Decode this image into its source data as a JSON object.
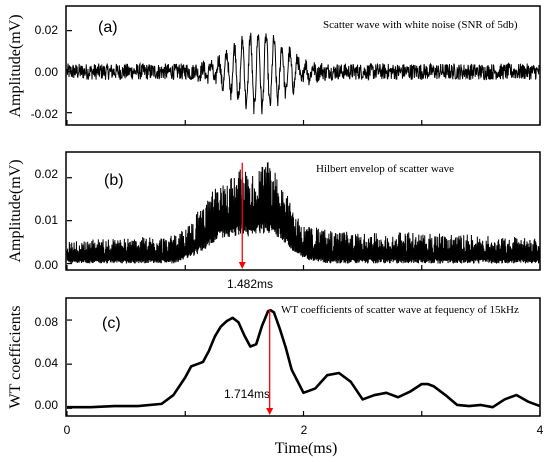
{
  "chart_data": [
    {
      "type": "line",
      "panel_label": "(a)",
      "annotation": "Scatter wave with white noise (SNR of 5db)",
      "ylabel": "Amplitude(mV)",
      "xlim": [
        0,
        4
      ],
      "ylim": [
        -0.026,
        0.032
      ],
      "yticks": [
        -0.02,
        0.0,
        0.02
      ],
      "ytick_labels": [
        "-0.02",
        "0.00",
        "0.02"
      ],
      "x_tick_values": [
        0,
        1,
        2,
        3,
        4
      ],
      "series": [
        {
          "color": "#000000",
          "noise_amplitude": 0.004,
          "burst": {
            "center_ms": 1.62,
            "width_ms": 0.32,
            "peak_amplitude": 0.018,
            "frequency_khz": 15
          },
          "x": [
            0,
            0.5,
            0.9,
            1.1,
            1.3,
            1.5,
            1.62,
            1.8,
            2.0,
            2.2,
            2.5,
            3.0,
            3.5,
            4.0
          ],
          "y_envelope": [
            0.004,
            0.004,
            0.005,
            0.008,
            0.014,
            0.019,
            0.02,
            0.017,
            0.01,
            0.006,
            0.004,
            0.004,
            0.004,
            0.004
          ]
        }
      ]
    },
    {
      "type": "line",
      "panel_label": "(b)",
      "annotation": "Hilbert envelop of scatter wave",
      "ylabel": "Amplitude(mV)",
      "xlim": [
        0,
        4
      ],
      "ylim": [
        -0.0015,
        0.026
      ],
      "yticks": [
        0.0,
        0.01,
        0.02
      ],
      "ytick_labels": [
        "0.00",
        "0.01",
        "0.02"
      ],
      "x_tick_values": [
        0,
        1,
        2,
        3,
        4
      ],
      "marker": {
        "x": 1.482,
        "y": 0.0235,
        "label": "1.482ms",
        "color": "#ff0000"
      },
      "series": [
        {
          "color": "#000000",
          "x": [
            0,
            0.5,
            0.9,
            1.0,
            1.1,
            1.2,
            1.3,
            1.4,
            1.482,
            1.55,
            1.6,
            1.7,
            1.8,
            1.9,
            2.0,
            2.2,
            2.5,
            3.0,
            3.5,
            4.0
          ],
          "y_upper": [
            0.0055,
            0.006,
            0.0065,
            0.008,
            0.012,
            0.016,
            0.019,
            0.021,
            0.023,
            0.02,
            0.022,
            0.024,
            0.021,
            0.013,
            0.009,
            0.008,
            0.007,
            0.0075,
            0.0065,
            0.006
          ],
          "y_lower": [
            0.0,
            0.0,
            0.0,
            0.001,
            0.002,
            0.004,
            0.006,
            0.006,
            0.007,
            0.006,
            0.007,
            0.007,
            0.006,
            0.003,
            0.001,
            0.0,
            0.0,
            0.0,
            0.0,
            0.0
          ]
        }
      ]
    },
    {
      "type": "line",
      "panel_label": "(c)",
      "annotation": "WT coefficients of scatter wave at fequency of 15kHz",
      "ylabel": "WT coefficients",
      "xlabel": "Time(ms)",
      "xlim": [
        0,
        4
      ],
      "ylim": [
        -0.007,
        0.1
      ],
      "yticks": [
        0.0,
        0.04,
        0.08
      ],
      "ytick_labels": [
        "0.00",
        "0.04",
        "0.08"
      ],
      "xticks": [
        0,
        2,
        4
      ],
      "xtick_labels": [
        "0",
        "2",
        "4"
      ],
      "x_tick_values": [
        0,
        1,
        2,
        3,
        4
      ],
      "marker": {
        "x": 1.714,
        "y": 0.0895,
        "label": "1.714ms",
        "color": "#ff0000"
      },
      "series": [
        {
          "color": "#000000",
          "x": [
            0.0,
            0.2,
            0.4,
            0.6,
            0.8,
            0.9,
            1.0,
            1.05,
            1.1,
            1.15,
            1.2,
            1.25,
            1.3,
            1.35,
            1.4,
            1.45,
            1.5,
            1.55,
            1.6,
            1.65,
            1.7,
            1.72,
            1.75,
            1.8,
            1.85,
            1.9,
            2.0,
            2.1,
            2.2,
            2.3,
            2.4,
            2.5,
            2.6,
            2.7,
            2.8,
            2.9,
            3.0,
            3.05,
            3.1,
            3.2,
            3.3,
            3.4,
            3.5,
            3.6,
            3.7,
            3.8,
            3.9,
            4.0
          ],
          "y": [
            0.001,
            0.001,
            0.002,
            0.002,
            0.004,
            0.012,
            0.028,
            0.038,
            0.04,
            0.042,
            0.052,
            0.065,
            0.074,
            0.079,
            0.082,
            0.078,
            0.066,
            0.056,
            0.058,
            0.075,
            0.088,
            0.089,
            0.087,
            0.072,
            0.055,
            0.035,
            0.014,
            0.018,
            0.03,
            0.032,
            0.024,
            0.008,
            0.012,
            0.014,
            0.01,
            0.015,
            0.022,
            0.022,
            0.02,
            0.012,
            0.003,
            0.002,
            0.003,
            0.001,
            0.008,
            0.012,
            0.006,
            0.002
          ]
        }
      ]
    }
  ]
}
